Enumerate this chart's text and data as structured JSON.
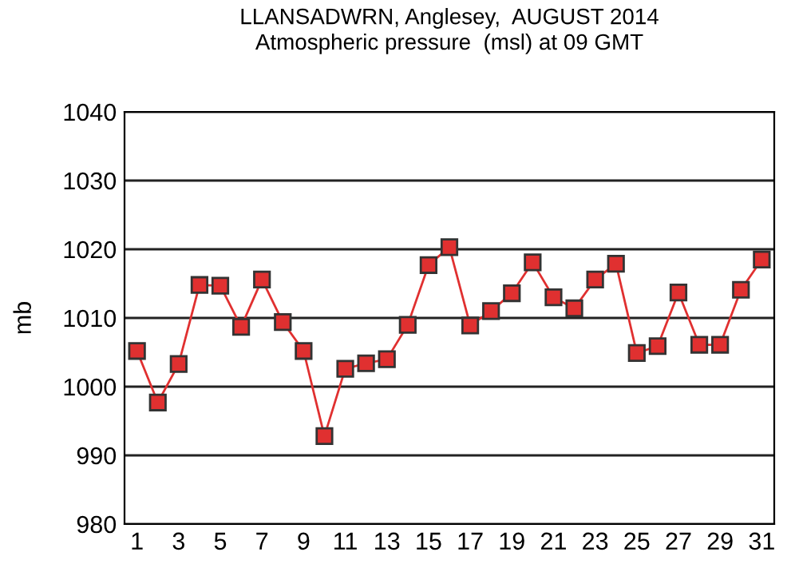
{
  "chart_data": {
    "type": "line",
    "title": "LLANSADWRN, Anglesey,  AUGUST 2014\nAtmospheric pressure  (msl) at 09 GMT",
    "ylabel": "mb",
    "x": [
      1,
      2,
      3,
      4,
      5,
      6,
      7,
      8,
      9,
      10,
      11,
      12,
      13,
      14,
      15,
      16,
      17,
      18,
      19,
      20,
      21,
      22,
      23,
      24,
      25,
      26,
      27,
      28,
      29,
      30,
      31
    ],
    "series": [
      {
        "color": "#e03030",
        "values": [
          1005.2,
          997.7,
          1003.3,
          1014.8,
          1014.7,
          1008.7,
          1015.6,
          1009.4,
          1005.2,
          992.8,
          1002.6,
          1003.4,
          1004.0,
          1009.0,
          1017.7,
          1020.3,
          1008.9,
          1011.0,
          1013.6,
          1018.1,
          1013.0,
          1011.4,
          1015.6,
          1017.9,
          1004.9,
          1005.9,
          1013.7,
          1006.1,
          1006.1,
          1014.1,
          1018.5
        ]
      }
    ],
    "xlim": [
      0.4,
      31.6
    ],
    "xticks": [
      1,
      3,
      5,
      7,
      9,
      11,
      13,
      15,
      17,
      19,
      21,
      23,
      25,
      27,
      29,
      31
    ],
    "ylim": [
      980,
      1040
    ],
    "yticks": [
      980,
      990,
      1000,
      1010,
      1020,
      1030,
      1040
    ],
    "grid": "y",
    "marker": "square",
    "line_style": "solid",
    "legend": false
  }
}
